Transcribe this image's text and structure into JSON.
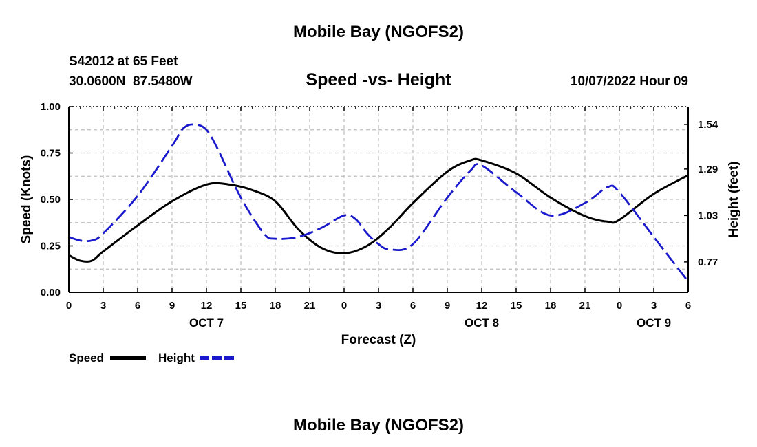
{
  "page": {
    "title": "Mobile Bay (NGOFS2)",
    "footer_title": "Mobile Bay (NGOFS2)",
    "station_line": "S42012 at 65 Feet",
    "coords_line": "30.0600N  87.5480W",
    "subtitle": "Speed -vs- Height",
    "timestamp": "10/07/2022 Hour 09"
  },
  "chart_data": {
    "type": "line",
    "title": "Speed -vs- Height",
    "xlabel": "Forecast (Z)",
    "ylabel_left": "Speed (Knots)",
    "ylabel_right": "Height (feet)",
    "x_range_hours": [
      0,
      54
    ],
    "x_ticks": [
      {
        "h": 0,
        "label": "0"
      },
      {
        "h": 3,
        "label": "3"
      },
      {
        "h": 6,
        "label": "6"
      },
      {
        "h": 9,
        "label": "9"
      },
      {
        "h": 12,
        "label": "12"
      },
      {
        "h": 15,
        "label": "15"
      },
      {
        "h": 18,
        "label": "18"
      },
      {
        "h": 21,
        "label": "21"
      },
      {
        "h": 24,
        "label": "0"
      },
      {
        "h": 27,
        "label": "3"
      },
      {
        "h": 30,
        "label": "6"
      },
      {
        "h": 33,
        "label": "9"
      },
      {
        "h": 36,
        "label": "12"
      },
      {
        "h": 39,
        "label": "15"
      },
      {
        "h": 42,
        "label": "18"
      },
      {
        "h": 45,
        "label": "21"
      },
      {
        "h": 48,
        "label": "0"
      },
      {
        "h": 51,
        "label": "3"
      },
      {
        "h": 54,
        "label": "6"
      }
    ],
    "day_labels": [
      {
        "h": 12,
        "label": "OCT 7"
      },
      {
        "h": 36,
        "label": "OCT 8"
      },
      {
        "h": 51,
        "label": "OCT 9"
      }
    ],
    "y_left_range": [
      0,
      1
    ],
    "y_left_ticks": [
      "0.00",
      "0.25",
      "0.50",
      "0.75",
      "1.00"
    ],
    "y_right_range": [
      0.6,
      1.64
    ],
    "y_right_ticks": [
      {
        "v": 0.77,
        "label": "0.77"
      },
      {
        "v": 1.03,
        "label": "1.03"
      },
      {
        "v": 1.29,
        "label": "1.29"
      },
      {
        "v": 1.54,
        "label": "1.54"
      }
    ],
    "grid": true,
    "legend_position": "bottom-left",
    "series": [
      {
        "name": "Speed",
        "axis": "left",
        "color": "#000000",
        "style": "solid",
        "x": [
          0,
          1,
          2,
          3,
          6,
          9,
          12,
          14,
          16,
          18,
          20,
          22,
          24,
          26,
          28,
          30,
          33,
          35,
          36,
          39,
          42,
          45,
          47,
          48,
          51,
          54
        ],
        "values": [
          0.2,
          0.17,
          0.17,
          0.22,
          0.36,
          0.49,
          0.58,
          0.58,
          0.55,
          0.49,
          0.34,
          0.24,
          0.21,
          0.25,
          0.35,
          0.48,
          0.65,
          0.71,
          0.71,
          0.64,
          0.51,
          0.41,
          0.38,
          0.39,
          0.53,
          0.63
        ]
      },
      {
        "name": "Height",
        "axis": "right",
        "color": "#1a1acc",
        "style": "dashed",
        "x": [
          0,
          1,
          2,
          3,
          6,
          9,
          10,
          11,
          12,
          13,
          15,
          17,
          18,
          20,
          22,
          24,
          25,
          26,
          27,
          28,
          30,
          33,
          35,
          36,
          39,
          42,
          45,
          47,
          48,
          51,
          54
        ],
        "values": [
          0.91,
          0.89,
          0.89,
          0.93,
          1.14,
          1.42,
          1.52,
          1.54,
          1.51,
          1.4,
          1.13,
          0.93,
          0.9,
          0.91,
          0.96,
          1.03,
          1.01,
          0.93,
          0.87,
          0.84,
          0.87,
          1.13,
          1.28,
          1.31,
          1.16,
          1.03,
          1.1,
          1.19,
          1.16,
          0.91,
          0.66
        ]
      }
    ]
  }
}
